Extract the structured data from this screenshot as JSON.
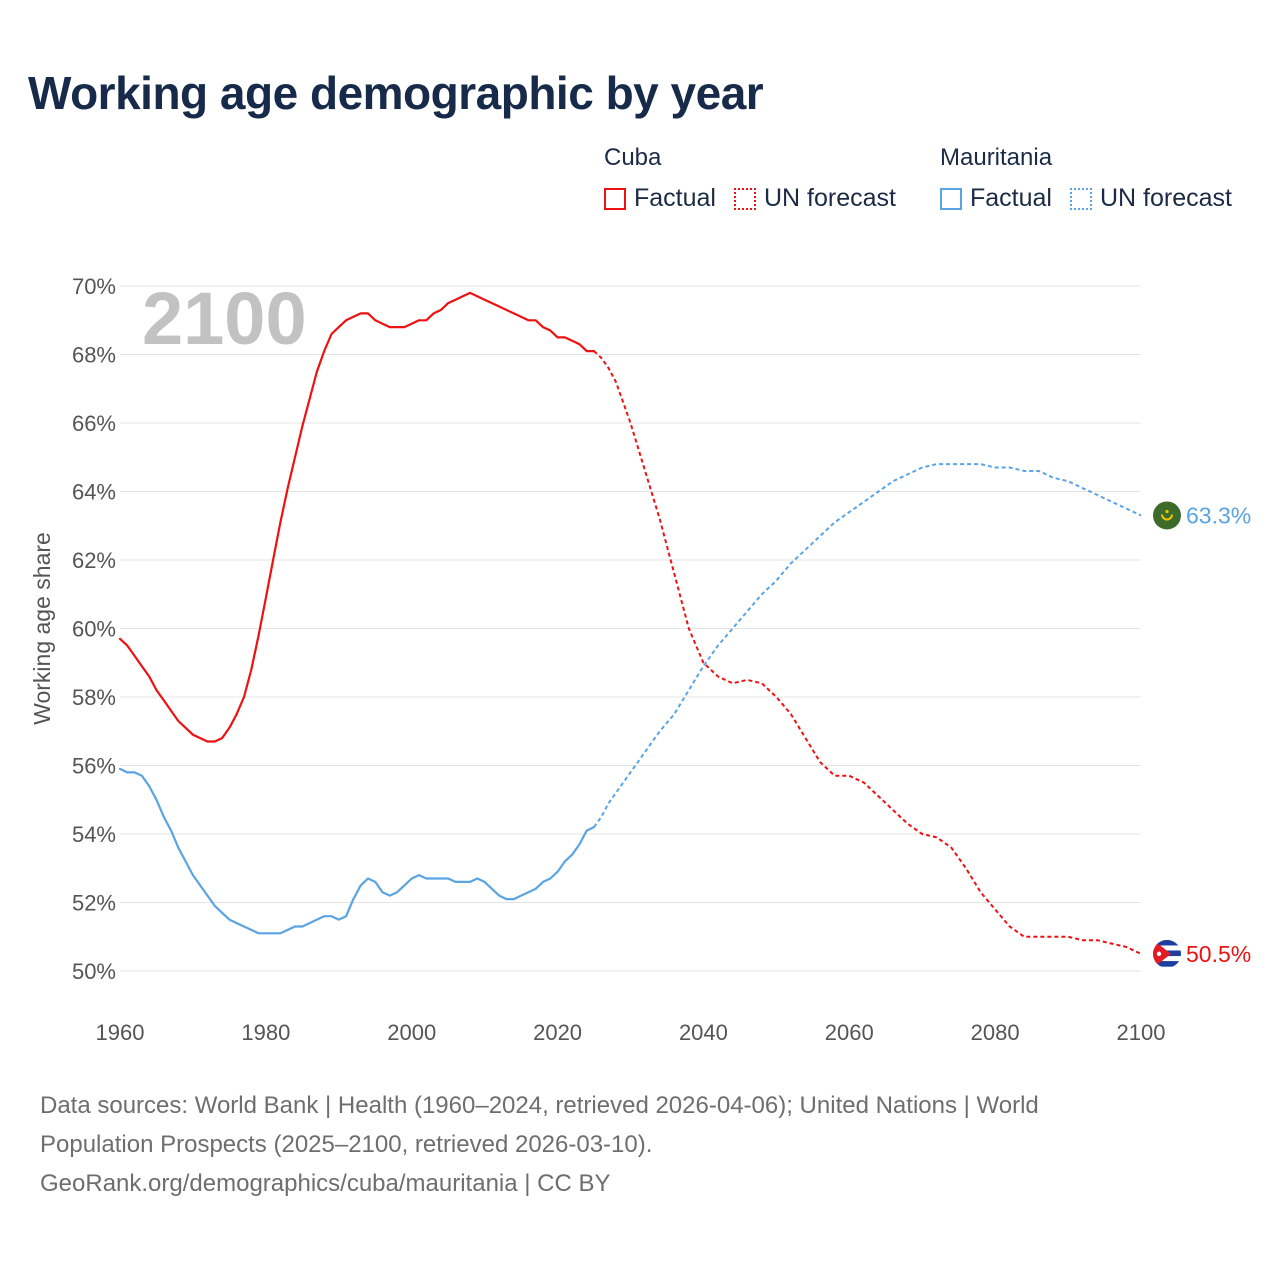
{
  "title": "Working age demographic by year",
  "year_overlay": "2100",
  "legend": {
    "groups": [
      {
        "name": "Cuba",
        "factual_label": "Factual",
        "forecast_label": "UN forecast",
        "color": "#ee1111"
      },
      {
        "name": "Mauritania",
        "factual_label": "Factual",
        "forecast_label": "UN forecast",
        "color": "#5aa4e4"
      }
    ]
  },
  "colors": {
    "cuba": "#ee1111",
    "mauritania": "#5aa4e4",
    "grid": "#e4e4e4",
    "axis_text": "#555555",
    "overlay": "#c2c2c2"
  },
  "chart_data": {
    "type": "line",
    "ylabel": "Working age share",
    "xlabel": "",
    "xlim": [
      1960,
      2100
    ],
    "ylim": [
      50,
      70
    ],
    "xticks": [
      1960,
      1980,
      2000,
      2020,
      2040,
      2060,
      2080,
      2100
    ],
    "yticks": [
      50,
      52,
      54,
      56,
      58,
      60,
      62,
      64,
      66,
      68,
      70
    ],
    "ytick_labels": [
      "50%",
      "52%",
      "54%",
      "56%",
      "58%",
      "60%",
      "62%",
      "64%",
      "66%",
      "68%",
      "70%"
    ],
    "forecast_start": 2025,
    "series": [
      {
        "name": "Cuba",
        "end_label": "50.5%",
        "x": [
          1960,
          1961,
          1962,
          1963,
          1964,
          1965,
          1966,
          1967,
          1968,
          1969,
          1970,
          1971,
          1972,
          1973,
          1974,
          1975,
          1976,
          1977,
          1978,
          1979,
          1980,
          1981,
          1982,
          1983,
          1984,
          1985,
          1986,
          1987,
          1988,
          1989,
          1990,
          1991,
          1992,
          1993,
          1994,
          1995,
          1996,
          1997,
          1998,
          1999,
          2000,
          2001,
          2002,
          2003,
          2004,
          2005,
          2006,
          2007,
          2008,
          2010,
          2012,
          2014,
          2016,
          2017,
          2018,
          2019,
          2020,
          2021,
          2022,
          2023,
          2024,
          2025,
          2026,
          2027,
          2028,
          2030,
          2032,
          2034,
          2036,
          2038,
          2040,
          2042,
          2044,
          2046,
          2048,
          2050,
          2052,
          2054,
          2056,
          2058,
          2060,
          2062,
          2064,
          2066,
          2068,
          2070,
          2072,
          2074,
          2076,
          2078,
          2080,
          2082,
          2084,
          2086,
          2088,
          2090,
          2092,
          2094,
          2096,
          2098,
          2100
        ],
        "values": [
          59.7,
          59.5,
          59.2,
          58.9,
          58.6,
          58.2,
          57.9,
          57.6,
          57.3,
          57.1,
          56.9,
          56.8,
          56.7,
          56.7,
          56.8,
          57.1,
          57.5,
          58.0,
          58.8,
          59.8,
          60.9,
          62.0,
          63.1,
          64.1,
          65.0,
          65.9,
          66.7,
          67.5,
          68.1,
          68.6,
          68.8,
          69.0,
          69.1,
          69.2,
          69.2,
          69.0,
          68.9,
          68.8,
          68.8,
          68.8,
          68.9,
          69.0,
          69.0,
          69.2,
          69.3,
          69.5,
          69.6,
          69.7,
          69.8,
          69.6,
          69.4,
          69.2,
          69.0,
          69.0,
          68.8,
          68.7,
          68.5,
          68.5,
          68.4,
          68.3,
          68.1,
          68.1,
          67.9,
          67.6,
          67.2,
          66.0,
          64.6,
          63.2,
          61.6,
          60.0,
          59.0,
          58.6,
          58.4,
          58.5,
          58.4,
          58.0,
          57.5,
          56.8,
          56.1,
          55.7,
          55.7,
          55.5,
          55.1,
          54.7,
          54.3,
          54.0,
          53.9,
          53.6,
          53.0,
          52.3,
          51.8,
          51.3,
          51.0,
          51.0,
          51.0,
          51.0,
          50.9,
          50.9,
          50.8,
          50.7,
          50.5
        ]
      },
      {
        "name": "Mauritania",
        "end_label": "63.3%",
        "x": [
          1960,
          1961,
          1962,
          1963,
          1964,
          1965,
          1966,
          1967,
          1968,
          1969,
          1970,
          1971,
          1972,
          1973,
          1974,
          1975,
          1976,
          1977,
          1978,
          1979,
          1980,
          1981,
          1982,
          1983,
          1984,
          1985,
          1986,
          1987,
          1988,
          1989,
          1990,
          1991,
          1992,
          1993,
          1994,
          1995,
          1996,
          1997,
          1998,
          1999,
          2000,
          2001,
          2002,
          2003,
          2004,
          2005,
          2006,
          2007,
          2008,
          2009,
          2010,
          2011,
          2012,
          2013,
          2014,
          2015,
          2016,
          2017,
          2018,
          2019,
          2020,
          2021,
          2022,
          2023,
          2024,
          2025,
          2026,
          2027,
          2028,
          2030,
          2032,
          2034,
          2036,
          2038,
          2040,
          2042,
          2044,
          2046,
          2048,
          2050,
          2052,
          2054,
          2056,
          2058,
          2060,
          2062,
          2064,
          2066,
          2068,
          2070,
          2072,
          2074,
          2076,
          2078,
          2080,
          2082,
          2084,
          2086,
          2088,
          2090,
          2092,
          2094,
          2096,
          2098,
          2100
        ],
        "values": [
          55.9,
          55.8,
          55.8,
          55.7,
          55.4,
          55.0,
          54.5,
          54.1,
          53.6,
          53.2,
          52.8,
          52.5,
          52.2,
          51.9,
          51.7,
          51.5,
          51.4,
          51.3,
          51.2,
          51.1,
          51.1,
          51.1,
          51.1,
          51.2,
          51.3,
          51.3,
          51.4,
          51.5,
          51.6,
          51.6,
          51.5,
          51.6,
          52.1,
          52.5,
          52.7,
          52.6,
          52.3,
          52.2,
          52.3,
          52.5,
          52.7,
          52.8,
          52.7,
          52.7,
          52.7,
          52.7,
          52.6,
          52.6,
          52.6,
          52.7,
          52.6,
          52.4,
          52.2,
          52.1,
          52.1,
          52.2,
          52.3,
          52.4,
          52.6,
          52.7,
          52.9,
          53.2,
          53.4,
          53.7,
          54.1,
          54.2,
          54.5,
          54.9,
          55.2,
          55.8,
          56.4,
          57.0,
          57.5,
          58.2,
          58.9,
          59.5,
          60.0,
          60.5,
          61.0,
          61.4,
          61.9,
          62.3,
          62.7,
          63.1,
          63.4,
          63.7,
          64.0,
          64.3,
          64.5,
          64.7,
          64.8,
          64.8,
          64.8,
          64.8,
          64.7,
          64.7,
          64.6,
          64.6,
          64.4,
          64.3,
          64.1,
          63.9,
          63.7,
          63.5,
          63.3
        ]
      }
    ]
  },
  "footer": {
    "line1": "Data sources: World Bank | Health (1960–2024, retrieved 2026-04-06); United Nations | World",
    "line2": "Population Prospects (2025–2100, retrieved 2026-03-10).",
    "line3": "GeoRank.org/demographics/cuba/mauritania | CC BY"
  }
}
